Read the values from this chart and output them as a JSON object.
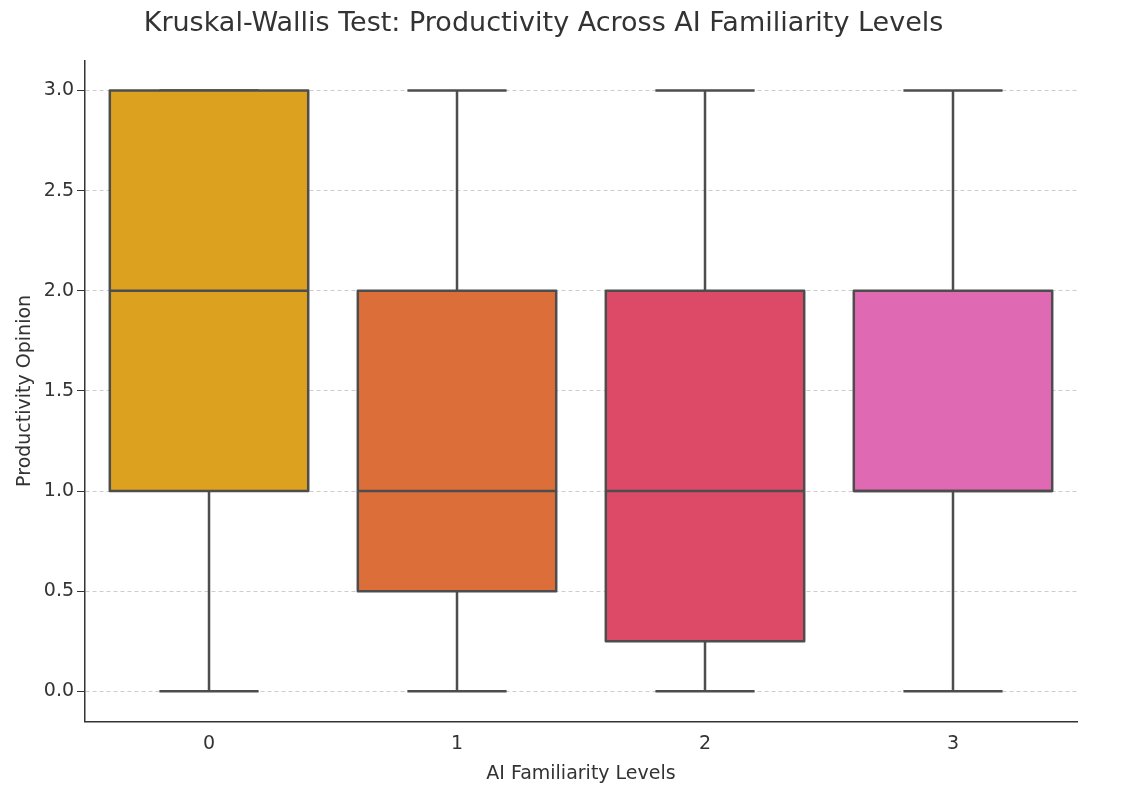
{
  "chart_data": {
    "type": "box",
    "title": "Kruskal-Wallis Test: Productivity Across AI Familiarity Levels",
    "xlabel": "AI Familiarity Levels",
    "ylabel": "Productivity Opinion",
    "categories": [
      "0",
      "1",
      "2",
      "3"
    ],
    "colors": [
      "#dca11f",
      "#dc6f39",
      "#dc4a68",
      "#e069b4"
    ],
    "boxes": [
      {
        "low": 0,
        "q1": 1,
        "median": 2,
        "q3": 3,
        "high": 3
      },
      {
        "low": 0,
        "q1": 0.5,
        "median": 1,
        "q3": 2,
        "high": 3
      },
      {
        "low": 0,
        "q1": 0.25,
        "median": 1,
        "q3": 2,
        "high": 3
      },
      {
        "low": 0,
        "q1": 1,
        "median": 1,
        "q3": 2,
        "high": 3
      }
    ],
    "ylim": [
      -0.15,
      3.15
    ],
    "yticks": [
      {
        "value": 0,
        "label": "0.0"
      },
      {
        "value": 0.5,
        "label": "0.5"
      },
      {
        "value": 1,
        "label": "1.0"
      },
      {
        "value": 1.5,
        "label": "1.5"
      },
      {
        "value": 2,
        "label": "2.0"
      },
      {
        "value": 2.5,
        "label": "2.5"
      },
      {
        "value": 3,
        "label": "3.0"
      }
    ],
    "grid": "y"
  }
}
